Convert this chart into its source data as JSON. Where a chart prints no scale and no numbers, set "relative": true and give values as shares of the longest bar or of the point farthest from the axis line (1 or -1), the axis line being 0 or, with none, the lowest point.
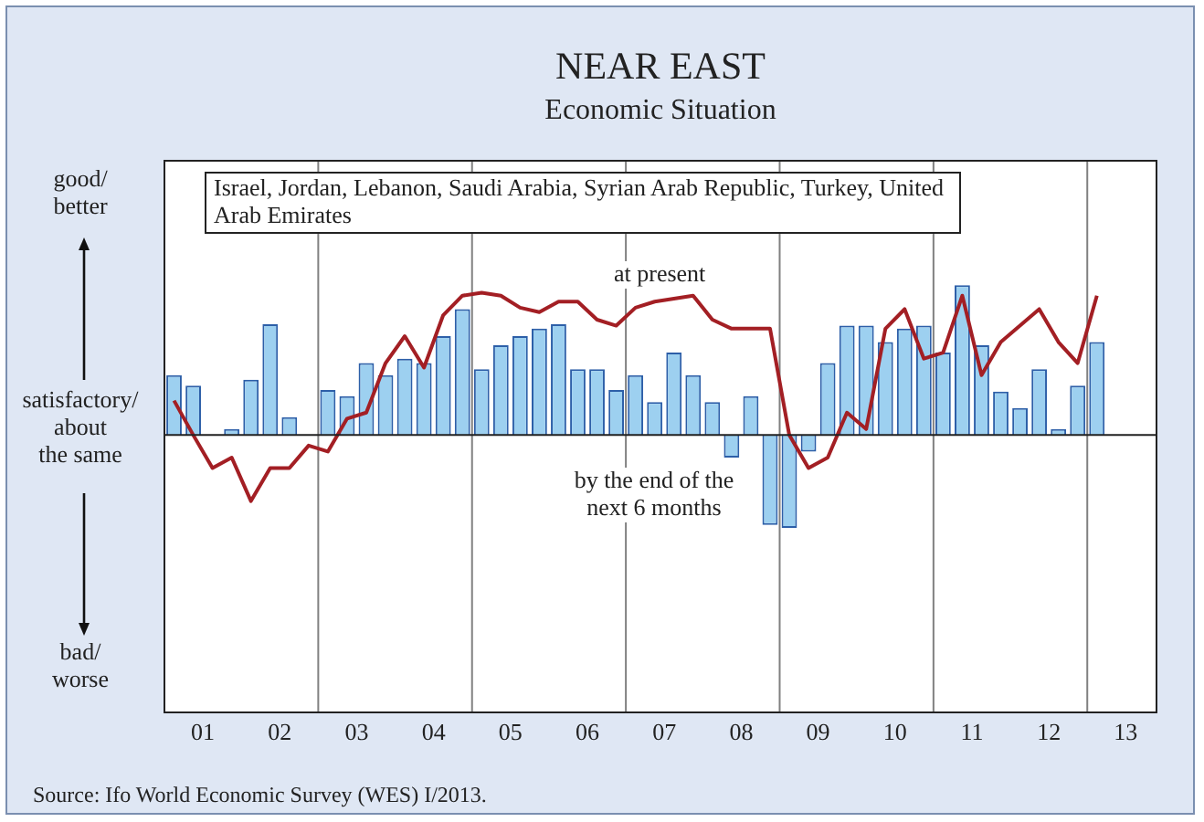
{
  "chart_data": {
    "type": "bar",
    "title": "NEAR EAST",
    "subtitle": "Economic Situation",
    "relative": true,
    "annotations": [
      "Israel, Jordan, Lebanon, Saudi Arabia, Syrian Arab Republic, Turkey, United Arab Emirates",
      "good/\nbetter",
      "satisfactory/\nabout\nthe same",
      "bad/\nworse",
      "Source: Ifo World Economic Survey (WES) I/2013."
    ],
    "x": [
      0.625,
      0.875,
      1.125,
      1.375,
      1.625,
      1.875,
      2.125,
      2.375,
      2.625,
      2.875,
      3.125,
      3.375,
      3.625,
      3.875,
      4.125,
      4.375,
      4.625,
      4.875,
      5.125,
      5.375,
      5.625,
      5.875,
      6.125,
      6.375,
      6.625,
      6.875,
      7.125,
      7.375,
      7.625,
      7.875,
      8.125,
      8.375,
      8.625,
      8.875,
      9.125,
      9.375,
      9.625,
      9.875,
      10.125,
      10.375,
      10.625,
      10.875,
      11.125,
      11.375,
      11.625,
      11.875,
      12.125,
      12.375,
      12.625
    ],
    "xlim": [
      0.5,
      13.4
    ],
    "xticks": [
      {
        "value": 1,
        "label": "01"
      },
      {
        "value": 2,
        "label": "02"
      },
      {
        "value": 3,
        "label": "03"
      },
      {
        "value": 4,
        "label": "04"
      },
      {
        "value": 5,
        "label": "05"
      },
      {
        "value": 6,
        "label": "06"
      },
      {
        "value": 7,
        "label": "07"
      },
      {
        "value": 8,
        "label": "08"
      },
      {
        "value": 9,
        "label": "09"
      },
      10,
      11,
      12,
      13
    ],
    "ref_lines": [
      {
        "axis": "x",
        "value": 2.5,
        "color": "#808080"
      },
      {
        "axis": "x",
        "value": 4.5,
        "color": "#808080"
      },
      {
        "axis": "x",
        "value": 6.5,
        "color": "#808080"
      },
      {
        "axis": "x",
        "value": 8.5,
        "color": "#808080"
      },
      {
        "axis": "x",
        "value": 10.5,
        "color": "#808080"
      },
      {
        "axis": "x",
        "value": 12.5,
        "color": "#808080"
      }
    ],
    "series": [
      {
        "name": "by the end of the next 6 months",
        "color": "#9dd0f0",
        "values": [
          0.4,
          0.33,
          0,
          0.04,
          0.37,
          0.74,
          0.12,
          0,
          0.3,
          0.26,
          0.48,
          0.4,
          0.51,
          0.48,
          0.66,
          0.84,
          0.44,
          0.6,
          0.66,
          0.71,
          0.74,
          0.44,
          0.44,
          0.3,
          0.4,
          0.22,
          0.55,
          0.4,
          0.22,
          -0.15,
          0.26,
          -0.6,
          -0.62,
          -0.11,
          0.48,
          0.73,
          0.73,
          0.62,
          0.71,
          0.73,
          0.55,
          1,
          0.6,
          0.29,
          0.18,
          0.44,
          0.04,
          0.33,
          0.62
        ]
      },
      {
        "type": "line",
        "name": "at present",
        "color": "#a31f24",
        "values": [
          0.23,
          0,
          -0.22,
          -0.15,
          -0.44,
          -0.22,
          -0.22,
          -0.07,
          -0.11,
          0.11,
          0.15,
          0.48,
          0.66,
          0.45,
          0.8,
          0.93,
          0.95,
          0.93,
          0.85,
          0.82,
          0.89,
          0.89,
          0.77,
          0.73,
          0.85,
          0.89,
          0.91,
          0.93,
          0.77,
          0.71,
          0.71,
          0.71,
          0,
          -0.22,
          -0.15,
          0.15,
          0.04,
          0.71,
          0.84,
          0.51,
          0.55,
          0.93,
          0.4,
          0.62,
          0.73,
          0.84,
          0.62,
          0.48,
          0.93
        ]
      }
    ]
  }
}
